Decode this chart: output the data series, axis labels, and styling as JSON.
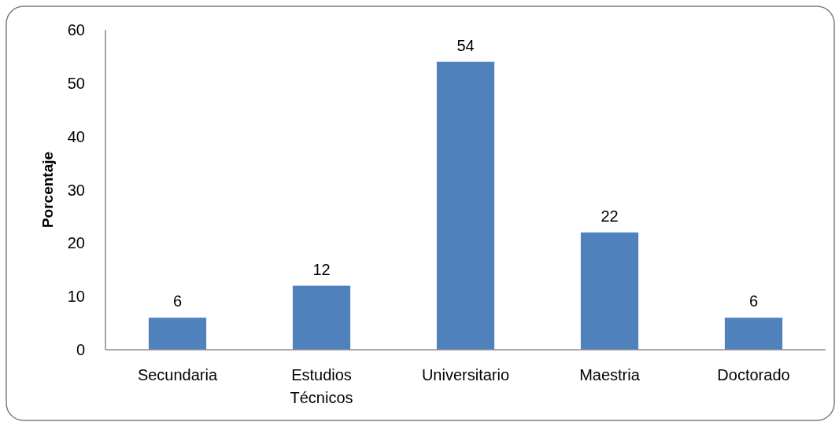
{
  "chart_data": {
    "type": "bar",
    "ylabel": "Porcentaje",
    "categories": [
      "Secundaria",
      "Estudios Técnicos",
      "Universitario",
      "Maestria",
      "Doctorado"
    ],
    "values": [
      6,
      12,
      54,
      22,
      6
    ],
    "color": "#4f81bd",
    "ylim": [
      0,
      60
    ],
    "yticks": [
      0,
      10,
      20,
      30,
      40,
      50,
      60
    ],
    "grid": false,
    "data_labels": true
  }
}
